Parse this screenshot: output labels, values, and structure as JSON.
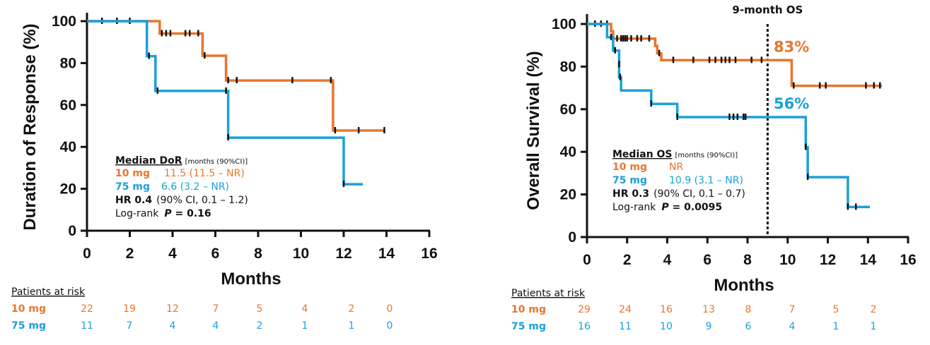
{
  "colors": {
    "orange": "#E8762D",
    "blue": "#1AA0D8",
    "black": "#111111"
  },
  "chart_data": [
    {
      "type": "line",
      "subtype": "kaplan-meier",
      "title": "",
      "xlabel": "Months",
      "ylabel": "Duration of Response (%)",
      "xlim": [
        0,
        16
      ],
      "ylim": [
        0,
        100
      ],
      "xticks": [
        "0",
        "2",
        "4",
        "6",
        "8",
        "10",
        "12",
        "14",
        "16"
      ],
      "yticks": [
        "0",
        "20",
        "40",
        "60",
        "80",
        "100"
      ],
      "series": [
        {
          "name": "10 mg",
          "color": "orange",
          "steps": [
            [
              0,
              100
            ],
            [
              3.4,
              100
            ],
            [
              3.4,
              94.1
            ],
            [
              5.4,
              94.1
            ],
            [
              5.4,
              83.5
            ],
            [
              6.5,
              83.5
            ],
            [
              6.5,
              71.7
            ],
            [
              11.5,
              71.7
            ],
            [
              11.5,
              47.8
            ],
            [
              13.9,
              47.8
            ]
          ],
          "censors": [
            [
              0.7,
              100
            ],
            [
              1.4,
              100
            ],
            [
              2.0,
              100
            ],
            [
              3.5,
              94.1
            ],
            [
              3.7,
              94.1
            ],
            [
              3.9,
              94.1
            ],
            [
              4.6,
              94.1
            ],
            [
              4.8,
              94.1
            ],
            [
              5.2,
              94.1
            ],
            [
              5.5,
              83.5
            ],
            [
              6.6,
              71.7
            ],
            [
              7.0,
              71.7
            ],
            [
              9.6,
              71.7
            ],
            [
              11.4,
              71.7
            ],
            [
              11.6,
              47.8
            ],
            [
              12.7,
              47.8
            ],
            [
              13.9,
              47.8
            ]
          ]
        },
        {
          "name": "75 mg",
          "color": "blue",
          "steps": [
            [
              0,
              100
            ],
            [
              2.8,
              100
            ],
            [
              2.8,
              83.3
            ],
            [
              3.2,
              83.3
            ],
            [
              3.2,
              66.7
            ],
            [
              6.6,
              66.7
            ],
            [
              6.6,
              44.4
            ],
            [
              12.0,
              44.4
            ],
            [
              12.0,
              22.2
            ],
            [
              12.9,
              22.2
            ]
          ],
          "censors": [
            [
              2.9,
              83.3
            ],
            [
              3.3,
              66.7
            ],
            [
              6.5,
              66.7
            ],
            [
              6.6,
              44.4
            ],
            [
              12.0,
              22.2
            ]
          ]
        }
      ],
      "annotation": {
        "heading": "Median DoR",
        "heading_note": "[months (90%CI)]",
        "row1_label": "10 mg",
        "row1_value": "11.5 (11.5 – NR)",
        "row2_label": "75 mg",
        "row2_value": "6.6 (3.2 – NR)",
        "hr_label": "HR 0.4",
        "hr_value": "(90% CI, 0.1 – 1.2)",
        "lr_label": "Log-rank",
        "lr_p": "P",
        "lr_value": " = 0.16"
      },
      "risk_table": {
        "title": "Patients at risk",
        "rows": [
          {
            "label": "10 mg",
            "color": "orange",
            "values": [
              "22",
              "19",
              "12",
              "7",
              "5",
              "4",
              "2",
              "0"
            ]
          },
          {
            "label": "75 mg",
            "color": "blue",
            "values": [
              "11",
              "7",
              "4",
              "4",
              "2",
              "1",
              "1",
              "0"
            ]
          }
        ]
      }
    },
    {
      "type": "line",
      "subtype": "kaplan-meier",
      "title": "",
      "xlabel": "Months",
      "ylabel": "Overall Survival (%)",
      "xlim": [
        0,
        16
      ],
      "ylim": [
        0,
        100
      ],
      "xticks": [
        "0",
        "2",
        "4",
        "6",
        "8",
        "10",
        "12",
        "14",
        "16"
      ],
      "yticks": [
        "0",
        "20",
        "40",
        "60",
        "80",
        "100"
      ],
      "reference_line": {
        "x": 9,
        "label": "9-month OS"
      },
      "landmark_labels": [
        {
          "text": "83%",
          "color": "orange",
          "y": 83
        },
        {
          "text": "56%",
          "color": "blue",
          "y": 56.3
        }
      ],
      "series": [
        {
          "name": "10 mg",
          "color": "orange",
          "steps": [
            [
              0,
              100
            ],
            [
              1.2,
              100
            ],
            [
              1.2,
              96.6
            ],
            [
              1.3,
              96.6
            ],
            [
              1.3,
              93.1
            ],
            [
              3.4,
              93.1
            ],
            [
              3.4,
              89.7
            ],
            [
              3.5,
              89.7
            ],
            [
              3.5,
              86.2
            ],
            [
              3.7,
              86.2
            ],
            [
              3.7,
              83.0
            ],
            [
              10.2,
              83.0
            ],
            [
              10.2,
              71.0
            ],
            [
              14.7,
              71.0
            ]
          ],
          "censors": [
            [
              0.4,
              100
            ],
            [
              0.7,
              100
            ],
            [
              1.0,
              100
            ],
            [
              1.5,
              93.1
            ],
            [
              1.7,
              93.1
            ],
            [
              1.8,
              93.1
            ],
            [
              1.9,
              93.1
            ],
            [
              2.0,
              93.1
            ],
            [
              2.2,
              93.1
            ],
            [
              2.5,
              93.1
            ],
            [
              2.7,
              93.1
            ],
            [
              3.1,
              93.1
            ],
            [
              3.6,
              86.2
            ],
            [
              4.3,
              83.0
            ],
            [
              5.3,
              83.0
            ],
            [
              6.1,
              83.0
            ],
            [
              6.4,
              83.0
            ],
            [
              6.7,
              83.0
            ],
            [
              6.9,
              83.0
            ],
            [
              7.1,
              83.0
            ],
            [
              7.4,
              83.0
            ],
            [
              8.2,
              83.0
            ],
            [
              8.7,
              83.0
            ],
            [
              10.3,
              71.0
            ],
            [
              11.6,
              71.0
            ],
            [
              11.9,
              71.0
            ],
            [
              13.9,
              71.0
            ],
            [
              14.3,
              71.0
            ],
            [
              14.6,
              71.0
            ]
          ]
        },
        {
          "name": "75 mg",
          "color": "blue",
          "steps": [
            [
              0,
              100
            ],
            [
              1.0,
              100
            ],
            [
              1.0,
              93.8
            ],
            [
              1.3,
              93.8
            ],
            [
              1.3,
              87.5
            ],
            [
              1.6,
              87.5
            ],
            [
              1.6,
              75.0
            ],
            [
              1.7,
              75.0
            ],
            [
              1.7,
              68.8
            ],
            [
              3.2,
              68.8
            ],
            [
              3.2,
              62.5
            ],
            [
              4.5,
              62.5
            ],
            [
              4.5,
              56.3
            ],
            [
              10.9,
              56.3
            ],
            [
              10.9,
              42.2
            ],
            [
              11.0,
              42.2
            ],
            [
              11.0,
              28.1
            ],
            [
              13.0,
              28.1
            ],
            [
              13.0,
              14.1
            ],
            [
              14.1,
              14.1
            ]
          ],
          "censors": [
            [
              1.2,
              93.8
            ],
            [
              1.4,
              87.5
            ],
            [
              1.6,
              81.0
            ],
            [
              1.65,
              75.0
            ],
            [
              3.2,
              62.5
            ],
            [
              4.5,
              56.3
            ],
            [
              7.1,
              56.3
            ],
            [
              7.3,
              56.3
            ],
            [
              7.5,
              56.3
            ],
            [
              7.8,
              56.3
            ],
            [
              7.9,
              56.3
            ],
            [
              10.9,
              42.2
            ],
            [
              11.0,
              28.1
            ],
            [
              13.0,
              14.1
            ],
            [
              13.4,
              14.1
            ]
          ]
        }
      ],
      "annotation": {
        "heading": "Median OS",
        "heading_note": "[months (90%CI)]",
        "row1_label": "10 mg",
        "row1_value": "NR",
        "row2_label": "75 mg",
        "row2_value": "10.9 (3.1 – NR)",
        "hr_label": "HR 0.3",
        "hr_value": "(90% CI, 0.1 – 0.7)",
        "lr_label": "Log-rank",
        "lr_p": "P",
        "lr_value": " = 0.0095"
      },
      "risk_table": {
        "title": "Patients at risk",
        "rows": [
          {
            "label": "10 mg",
            "color": "orange",
            "values": [
              "29",
              "24",
              "16",
              "13",
              "8",
              "7",
              "5",
              "2"
            ]
          },
          {
            "label": "75 mg",
            "color": "blue",
            "values": [
              "16",
              "11",
              "10",
              "9",
              "6",
              "4",
              "1",
              "1"
            ]
          }
        ]
      }
    }
  ]
}
